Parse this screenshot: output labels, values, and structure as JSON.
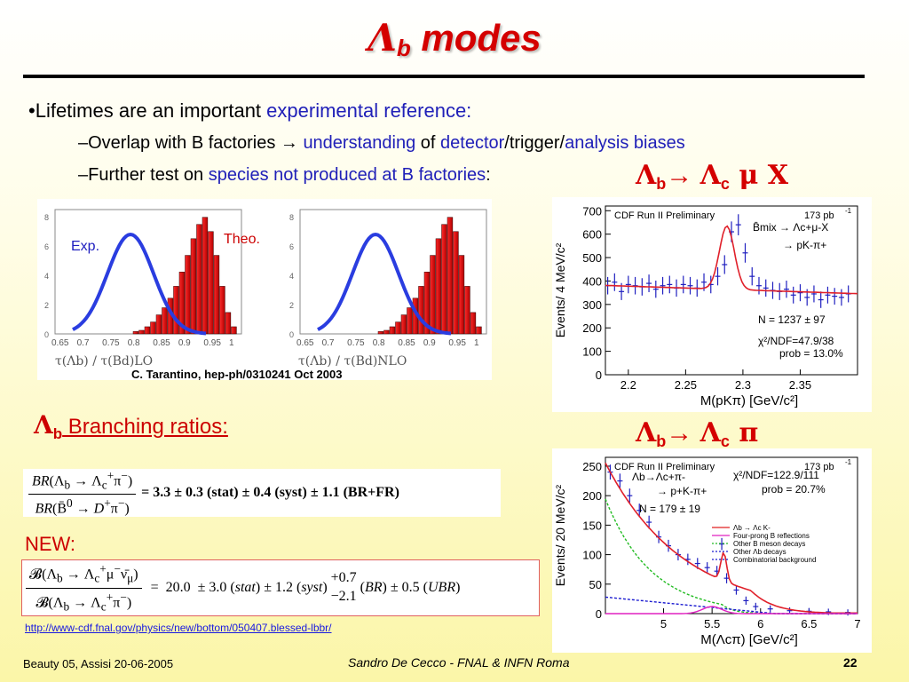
{
  "slide": {
    "title_symbol": "Λ",
    "title_sub": "b",
    "title_rest": " modes",
    "bullet1": {
      "prefix": "•Lifetimes are an important ",
      "highlight": "experimental reference:"
    },
    "sub1": {
      "text1": "–Overlap with B factories ",
      "arrow": "→",
      "blue1": "understanding",
      "text2": " of ",
      "blue2": "detector",
      "text3": "/trigger/",
      "blue3": "analysis biases"
    },
    "sub2": {
      "text1": "–Further test on ",
      "blue1": "species not produced at B factories",
      "text2": ":"
    },
    "decay1": {
      "l1": "Λ",
      "s1": "b",
      "arrow": "→ ",
      "l2": "Λ",
      "s2": "c",
      "rest": " μ X"
    },
    "decay2": {
      "l1": "Λ",
      "s1": "b",
      "arrow": "→ ",
      "l2": "Λ",
      "s2": "c",
      "rest": " π"
    },
    "branching": {
      "l": "Λ",
      "s": "b",
      "text": " Branching ratios:"
    },
    "new_label": "NEW:",
    "url": "http://www-cdf.fnal.gov/physics/new/bottom/050407.blessed-lbbr/",
    "footer": {
      "left": "Beauty 05, Assisi 20-06-2005",
      "center": "Sandro De Cecco - FNAL & INFN Roma",
      "page": "22"
    }
  },
  "lifetime_panel": {
    "exp_label": "Exp.",
    "theo_label": "Theo.",
    "ticks": [
      "0.65",
      "0.7",
      "0.75",
      "0.8",
      "0.85",
      "0.9",
      "0.95",
      "1"
    ],
    "ylabels": [
      "8",
      "6",
      "4",
      "2",
      "0"
    ],
    "xlabel_lo": "τ(Λb) / τ(Bd)LO",
    "xlabel_nlo": "τ(Λb) / τ(Bd)NLO",
    "citation": "C. Tarantino, hep-ph/0310241 Oct 2003"
  },
  "chart_data": [
    {
      "type": "line",
      "title": "CDF Run II Preliminary",
      "lumi": "173 pb",
      "lumi_sup": "-1",
      "xlabel": "M(pKπ) [GeV/c²]",
      "ylabel": "Events/ 4 MeV/c²",
      "xlim": [
        2.18,
        2.4
      ],
      "ylim": [
        0,
        720
      ],
      "xticks": [
        2.2,
        2.25,
        2.3,
        2.35
      ],
      "yticks": [
        0,
        100,
        200,
        300,
        400,
        500,
        600,
        700
      ],
      "legend": [
        "B̄mix → Λc+μ-X",
        "→ pK-π+"
      ],
      "annotations": [
        "N = 1237 ± 97",
        "χ²/NDF=47.9/38",
        "prob = 13.0%"
      ],
      "series": [
        {
          "x": [
            2.182,
            2.188,
            2.194,
            2.2,
            2.206,
            2.212,
            2.218,
            2.224,
            2.23,
            2.236,
            2.242,
            2.248,
            2.254,
            2.26,
            2.266,
            2.272,
            2.278,
            2.284,
            2.29,
            2.296,
            2.302,
            2.308,
            2.314,
            2.32,
            2.326,
            2.332,
            2.338,
            2.344,
            2.35,
            2.356,
            2.362,
            2.368,
            2.374,
            2.38,
            2.386,
            2.392
          ],
          "y": [
            380,
            395,
            355,
            385,
            380,
            375,
            390,
            365,
            380,
            385,
            370,
            385,
            380,
            370,
            395,
            385,
            420,
            470,
            610,
            640,
            520,
            420,
            380,
            370,
            360,
            355,
            365,
            340,
            350,
            330,
            345,
            320,
            340,
            335,
            330,
            345
          ]
        }
      ]
    },
    {
      "type": "line",
      "title": "CDF Run II Preliminary",
      "lumi": "173 pb",
      "lumi_sup": "-1",
      "xlabel": "M(Λcπ) [GeV/c²]",
      "ylabel": "Events/ 20 MeV/c²",
      "xlim": [
        4.4,
        7.0
      ],
      "ylim": [
        0,
        265
      ],
      "xticks": [
        5,
        5.5,
        6,
        6.5,
        7
      ],
      "yticks": [
        0,
        50,
        100,
        150,
        200,
        250
      ],
      "annotations": [
        "Λb→Λc+π-",
        "→ p+K-π+",
        "N = 179 ± 19",
        "χ²/NDF=122.9/111",
        "prob = 20.7%"
      ],
      "legend": [
        "Λb → Λc K-",
        "Four-prong B reflections",
        "Other B meson decays",
        "Other Λb decays",
        "Combinatorial background"
      ],
      "series": [
        {
          "x": [
            4.45,
            4.55,
            4.65,
            4.75,
            4.85,
            4.95,
            5.05,
            5.15,
            5.25,
            5.35,
            5.45,
            5.55,
            5.6,
            5.65,
            5.75,
            5.85,
            5.95,
            6.1,
            6.3,
            6.5,
            6.7,
            6.9
          ],
          "y": [
            240,
            225,
            200,
            175,
            155,
            130,
            115,
            100,
            92,
            85,
            78,
            72,
            118,
            60,
            40,
            22,
            12,
            8,
            5,
            4,
            3,
            2
          ]
        }
      ]
    }
  ]
}
